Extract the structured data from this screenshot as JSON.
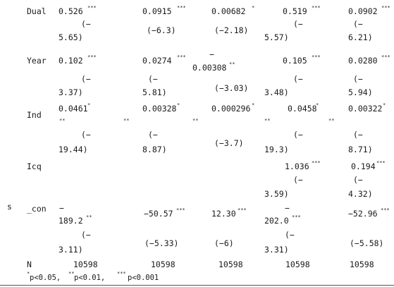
{
  "row_labels": {
    "side": "s",
    "dual": "Dual",
    "year": "Year",
    "ind": "Ind",
    "icq": "Icq",
    "con": "_con",
    "n": "N"
  },
  "cells": {
    "dual": {
      "c1": {
        "coef": "0.526",
        "stars": "***",
        "se_a": "(−",
        "se_b": "5.65)"
      },
      "c2": {
        "coef": "0.0915",
        "stars": "***",
        "se": "(−6.3)"
      },
      "c3": {
        "coef": "0.00682",
        "stars": "*",
        "se": "(−2.18)"
      },
      "c4": {
        "coef": "0.519",
        "stars": "***",
        "se_a": "(−",
        "se_b": "5.57)"
      },
      "c5": {
        "coef": "0.0902",
        "stars": "***",
        "se_a": "(−",
        "se_b": "6.21)"
      }
    },
    "year": {
      "c1": {
        "coef": "0.102",
        "stars": "***",
        "se_a": "(−",
        "se_b": "3.37)"
      },
      "c2": {
        "coef": "0.0274",
        "stars": "***",
        "se_a": "(−",
        "se_b": "5.81)"
      },
      "c3": {
        "coef_a": "−",
        "coef_b": "0.00308",
        "stars": "**",
        "se": "(−3.03)"
      },
      "c4": {
        "coef": "0.105",
        "stars": "***",
        "se_a": "(−",
        "se_b": "3.48)"
      },
      "c5": {
        "coef": "0.0280",
        "stars": "***",
        "se_a": "(−",
        "se_b": "5.94)"
      }
    },
    "ind": {
      "c1": {
        "coef": "0.0461",
        "stars": "*",
        "stars2": "**",
        "se_a": "(−",
        "se_b": "19.44)"
      },
      "c2": {
        "coef": "0.00328",
        "stars": "*",
        "stars2": "**",
        "se_a": "(−",
        "se_b": "8.87)"
      },
      "c3": {
        "coef": "0.000296",
        "stars": "*",
        "stars2": "**",
        "se": "(−3.7)"
      },
      "c4": {
        "coef": "0.0458",
        "stars": "*",
        "stars2": "**",
        "se_a": "(−",
        "se_b": "19.3)"
      },
      "c5": {
        "coef": "0.00322",
        "stars": "*",
        "stars2": "**",
        "se_a": "(−",
        "se_b": "8.71)"
      }
    },
    "icq": {
      "c4": {
        "coef": "1.036",
        "stars": "***",
        "se_a": "(−",
        "se_b": "3.59)"
      },
      "c5": {
        "coef": "0.194",
        "stars": "***",
        "se_a": "(−",
        "se_b": "4.32)"
      }
    },
    "con": {
      "c1": {
        "coef_a": "−",
        "coef_b": "189.2",
        "stars": "**",
        "se_a": "(−",
        "se_b": "3.11)"
      },
      "c2": {
        "coef": "−50.57",
        "stars": "***",
        "se": "(−5.33)"
      },
      "c3": {
        "coef": "12.30",
        "stars": "***",
        "se": "(−6)"
      },
      "c4": {
        "coef_a": "−",
        "coef_b": "202.0",
        "stars": "***",
        "se_a": "(−",
        "se_b": "3.31)"
      },
      "c5": {
        "coef": "−52.96",
        "stars": "***",
        "se": "(−5.58)"
      }
    },
    "n": {
      "c1": "10598",
      "c2": "10598",
      "c3": "10598",
      "c4": "10598",
      "c5": "10598"
    }
  },
  "footnote": {
    "s1": "*",
    "t1": "p<0.05,",
    "s2": "**",
    "t2": "p<0.01,",
    "s3": "***",
    "t3": "p<0.001"
  },
  "colors": {
    "text": "#1a1a1a",
    "rule": "#555555",
    "background": "#ffffff"
  }
}
